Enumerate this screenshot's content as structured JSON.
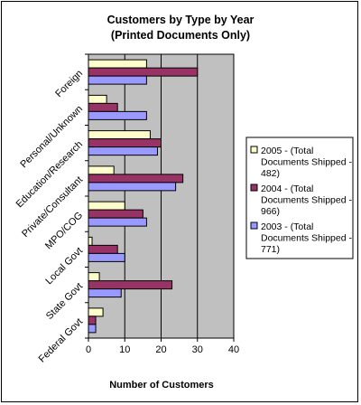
{
  "chart_data": {
    "type": "bar",
    "orientation": "horizontal",
    "title_lines": [
      "Customers by Type by Year",
      "(Printed Documents Only)"
    ],
    "xlabel": "Number of Customers",
    "ylabel": "",
    "xlim": [
      0,
      40
    ],
    "x_ticks": [
      "0",
      "10",
      "20",
      "30",
      "40"
    ],
    "grid": "vertical gridlines",
    "legend_position": "right",
    "categories": [
      "Foreign",
      "Personal/Unknown",
      "Education/Research",
      "Private/Consultant",
      "MPO/COG",
      "Local Govt",
      "State Govt",
      "Federal Govt"
    ],
    "series": [
      {
        "name": "2005 - (Total Documents Shipped - 482)",
        "legend_lines": [
          "2005 - (Total",
          "Documents Shipped -",
          "482)"
        ],
        "color": "#FFFFCC",
        "values": [
          16,
          5,
          17,
          7,
          10,
          1,
          3,
          4
        ]
      },
      {
        "name": "2004 - (Total Documents Shipped - 966)",
        "legend_lines": [
          "2004 - (Total",
          "Documents Shipped -",
          "966)"
        ],
        "color": "#993366",
        "values": [
          30,
          8,
          20,
          26,
          15,
          8,
          23,
          2
        ]
      },
      {
        "name": "2003 - (Total Documents Shipped - 771)",
        "legend_lines": [
          "2003 - (Total",
          "Documents Shipped -",
          "771)"
        ],
        "color": "#9999FF",
        "values": [
          16,
          16,
          19,
          24,
          16,
          10,
          9,
          2
        ]
      }
    ],
    "colors": {
      "plot_background": "#C0C0C0",
      "gridline": "#000000"
    }
  }
}
